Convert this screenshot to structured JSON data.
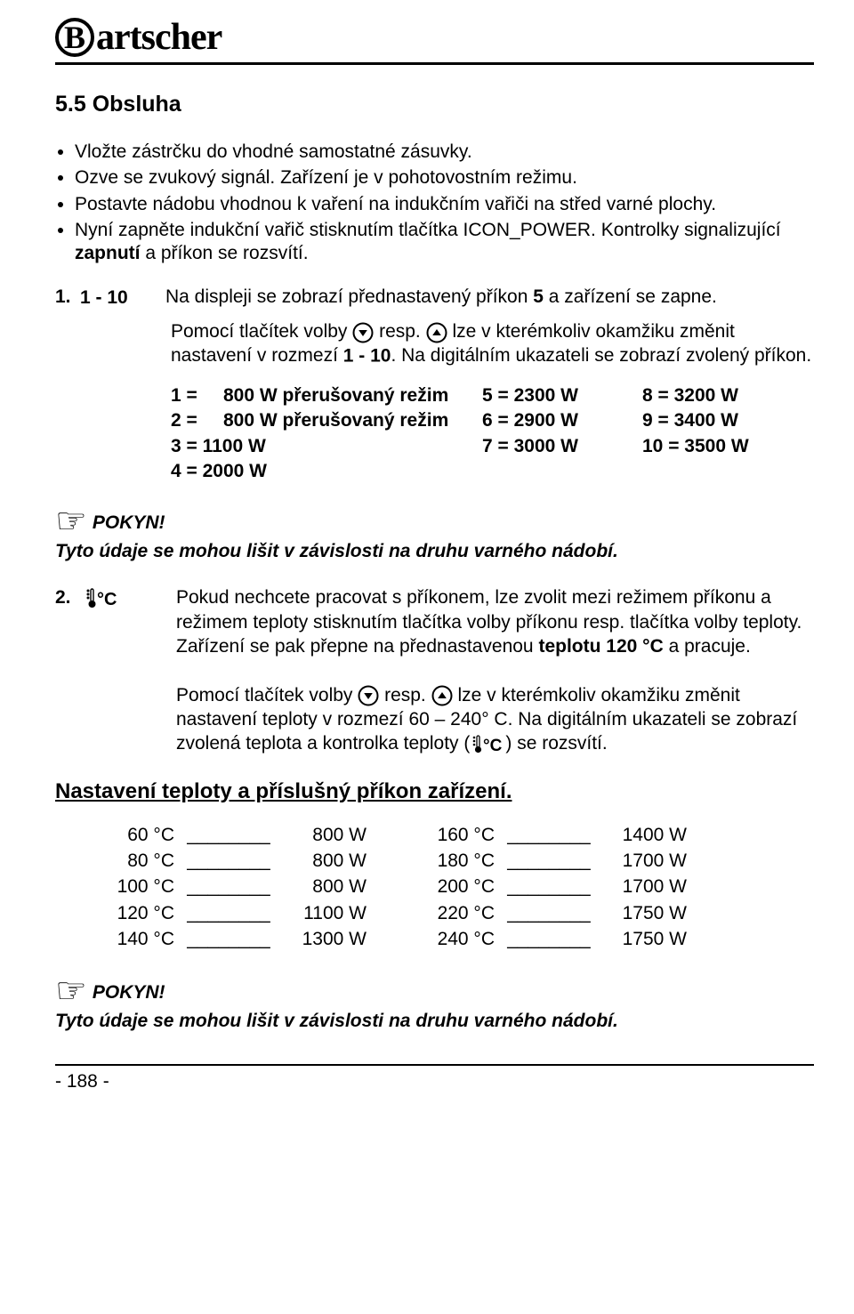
{
  "logo": {
    "letter": "B",
    "rest": "artscher"
  },
  "section_title": "5.5 Obsluha",
  "bullets": [
    "Vložte zástrčku do vhodné samostatné zásuvky.",
    "Ozve se zvukový signál. Zařízení je v pohotovostním režimu.",
    "Postavte nádobu vhodnou k vaření na indukčním vařiči na střed varné plochy.",
    "Nyní zapněte indukční vařič stisknutím tlačítka ICON_POWER. Kontrolky signalizující BOLD_zapnutí a příkon se rozsvítí."
  ],
  "step1": {
    "num": "1.",
    "range": "1 - 10",
    "text": "Na displeji se zobrazí přednastavený příkon BOLD_5 a zařízení se zapne."
  },
  "para_buttons": {
    "p1_a": "Pomocí tlačítek volby ",
    "p1_b": " resp. ",
    "p1_c": " lze v kterémkoliv okamžiku změnit nastavení v rozmezí ",
    "p1_d": ". Na digitálním ukazateli se zobrazí zvolený příkon.",
    "range": "1 - 10"
  },
  "power_rows": [
    {
      "c1": "1 =   800 W přerušovaný režim",
      "c2": "5 = 2300 W",
      "c3": "8 = 3200 W"
    },
    {
      "c1": "2 =   800 W přerušovaný režim",
      "c2": "6 = 2900 W",
      "c3": "9 = 3400 W"
    },
    {
      "c1": "3 = 1100 W",
      "c2": "7 = 3000 W",
      "c3": "10 = 3500 W"
    },
    {
      "c1": "4 = 2000 W",
      "c2": "",
      "c3": ""
    }
  ],
  "pokyn_label": "POKYN!",
  "pokyn_text": "Tyto údaje se mohou lišit v závislosti na druhu varného nádobí.",
  "step2": {
    "num": "2.",
    "p1": "Pokud nechcete pracovat s příkonem, lze zvolit mezi režimem příkonu a režimem teploty stisknutím tlačítka volby příkonu resp. tlačítka volby teploty. Zařízení se pak přepne na přednastavenou BOLD_teplotu BOLD_120 BOLD_°C a pracuje.",
    "p2_a": "Pomocí tlačítek volby ",
    "p2_b": " resp. ",
    "p2_c": " lze v kterémkoliv okamžiku změnit nastavení teploty v rozmezí 60 – 240° C. Na digitálním ukazateli se zobrazí zvolená teplota a kontrolka teploty (",
    "p2_d": ") se rozsvítí."
  },
  "temp_heading": "Nastavení teploty a příslušný příkon zařízení.",
  "temp_rows": [
    {
      "t1": "60 °C",
      "w1": "800 W",
      "t2": "160 °C",
      "w2": "1400 W"
    },
    {
      "t1": "80 °C",
      "w1": "800 W",
      "t2": "180 °C",
      "w2": "1700 W"
    },
    {
      "t1": "100 °C",
      "w1": "800 W",
      "t2": "200 °C",
      "w2": "1700 W"
    },
    {
      "t1": "120 °C",
      "w1": "1100 W",
      "t2": "220 °C",
      "w2": "1750 W"
    },
    {
      "t1": "140 °C",
      "w1": "1300 W",
      "t2": "240 °C",
      "w2": "1750 W"
    }
  ],
  "page_number": "- 188 -",
  "colors": {
    "text": "#000000",
    "bg": "#ffffff"
  }
}
